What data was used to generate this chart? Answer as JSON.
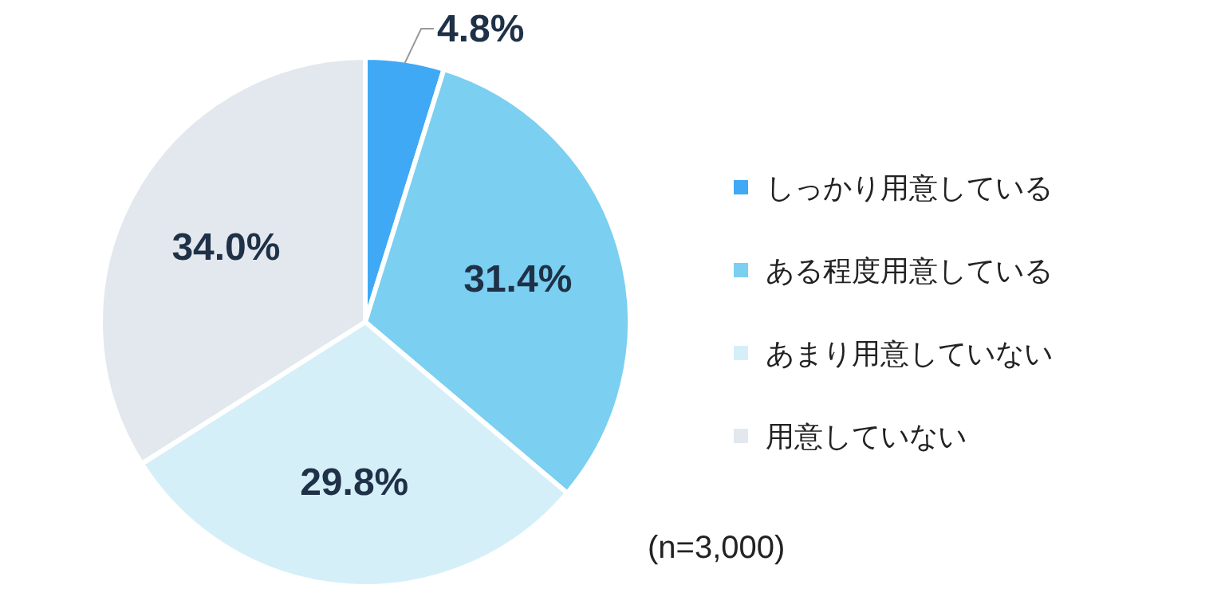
{
  "chart_data": {
    "type": "pie",
    "categories": [
      "しっかり用意している",
      "ある程度用意している",
      "あまり用意していない",
      "用意していない"
    ],
    "values": [
      4.8,
      31.4,
      29.8,
      34.0
    ],
    "colors": [
      "#3fa9f5",
      "#7bcff0",
      "#d5eff9",
      "#e2e8ee"
    ],
    "value_labels": [
      "4.8%",
      "31.4%",
      "29.8%",
      "34.0%"
    ],
    "legend": "right",
    "annotations": [
      "(n=3,000)"
    ]
  }
}
